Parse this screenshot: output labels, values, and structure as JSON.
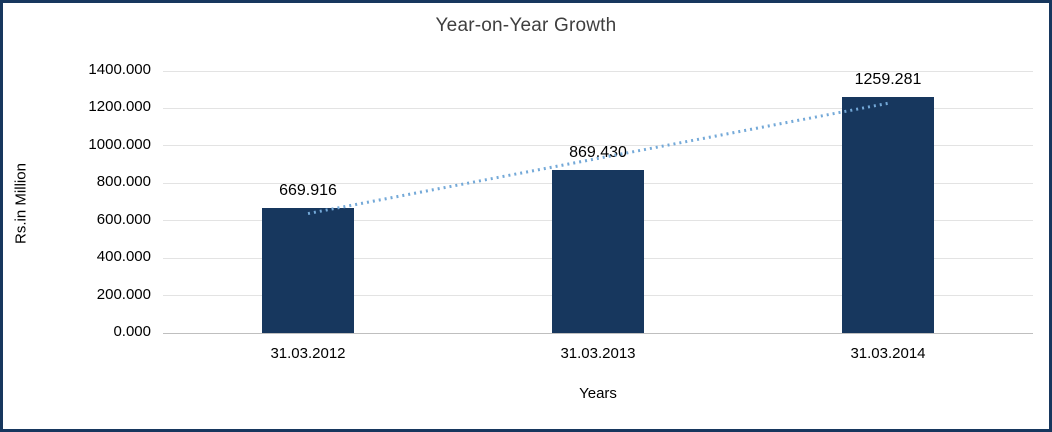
{
  "chart_data": {
    "type": "bar",
    "title": "Year-on-Year Growth",
    "xlabel": "Years",
    "ylabel": "Rs.in Million",
    "categories": [
      "31.03.2012",
      "31.03.2013",
      "31.03.2014"
    ],
    "values": [
      669.916,
      869.43,
      1259.281
    ],
    "value_labels": [
      "669.916",
      "869.430",
      "1259.281"
    ],
    "ylim": [
      0,
      1400
    ],
    "ytick_step": 200,
    "ytick_labels": [
      "0.000",
      "200.000",
      "400.000",
      "600.000",
      "800.000",
      "1000.000",
      "1200.000",
      "1400.000"
    ],
    "grid": true,
    "legend": "none",
    "bar_color": "#17375E",
    "frame_color": "#17375E",
    "trendline": {
      "type": "linear",
      "style": "dotted",
      "color": "#74a9d8"
    }
  }
}
